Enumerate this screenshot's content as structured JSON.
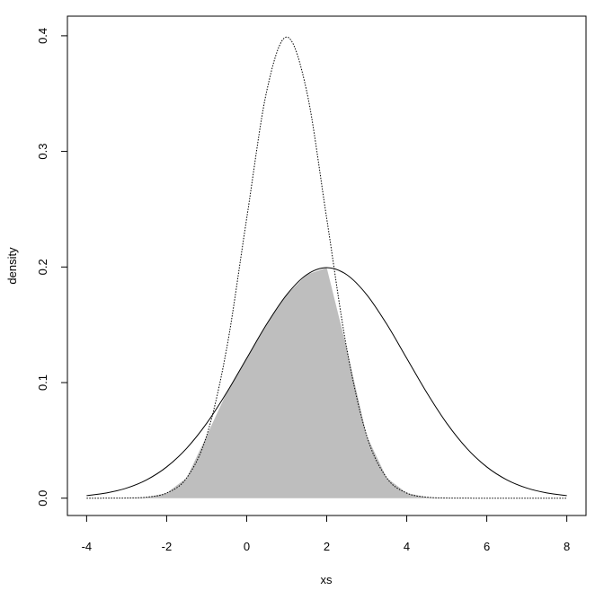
{
  "chart_data": {
    "type": "line",
    "x_label": "xs",
    "y_label": "density",
    "x": [
      -4,
      -3.5,
      -3,
      -2.5,
      -2,
      -1.5,
      -1,
      -0.5,
      0,
      0.5,
      1,
      1.5,
      2,
      2.5,
      3,
      3.5,
      4,
      4.5,
      5,
      5.5,
      6,
      6.5,
      7,
      7.5,
      8
    ],
    "series": [
      {
        "color": "#000000",
        "dash": "dotted",
        "values": [
          1.5e-06,
          1.6e-05,
          0.000134,
          0.000873,
          0.004432,
          0.017528,
          0.053991,
          0.129518,
          0.241971,
          0.352065,
          0.398942,
          0.352065,
          0.241971,
          0.129518,
          0.053991,
          0.017528,
          0.004432,
          0.000873,
          0.000134,
          1.6e-05,
          1.5e-06,
          0,
          0,
          0,
          0
        ]
      },
      {
        "color": "#000000",
        "dash": "solid",
        "values": [
          0.002216,
          0.004547,
          0.008764,
          0.01587,
          0.026995,
          0.043139,
          0.064759,
          0.091325,
          0.120985,
          0.150569,
          0.176033,
          0.193334,
          0.199471,
          0.193334,
          0.176033,
          0.150569,
          0.120985,
          0.091325,
          0.064759,
          0.043139,
          0.026995,
          0.01587,
          0.008764,
          0.004547,
          0.002216
        ]
      }
    ],
    "overlap_fill": "#bebebe",
    "xlim": [
      -4.48,
      8.48
    ],
    "xticks": [
      -4,
      -2,
      0,
      2,
      4,
      6,
      8
    ],
    "ylim": [
      -0.015,
      0.417
    ],
    "yticks": [
      {
        "value": 0,
        "label": "0.0"
      },
      0.1,
      0.2,
      0.3,
      0.4
    ]
  }
}
